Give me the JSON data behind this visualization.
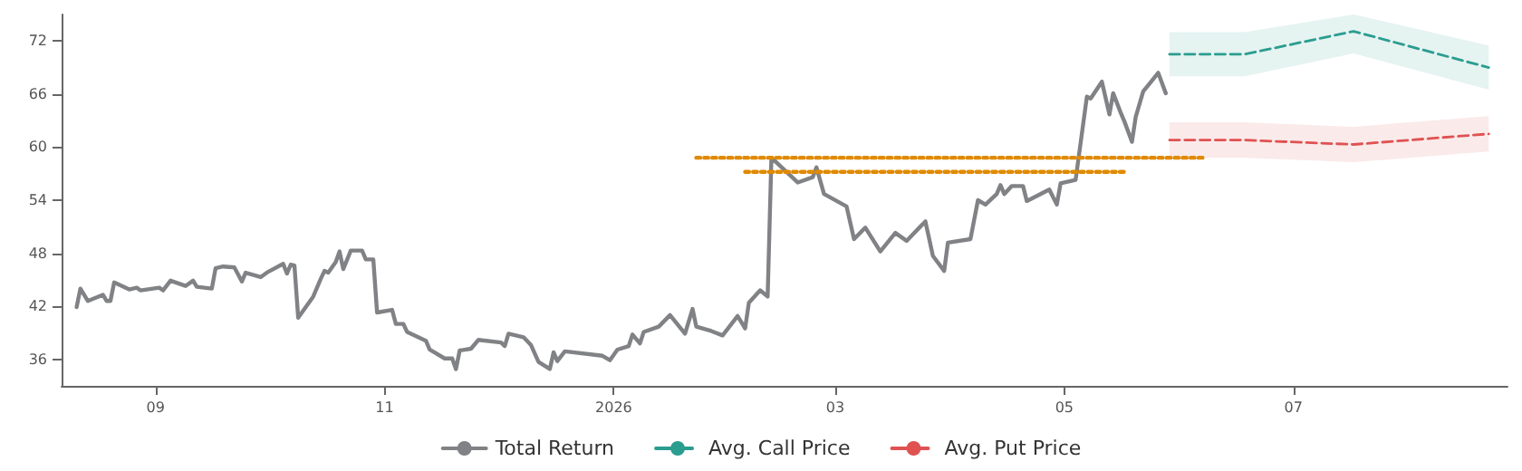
{
  "chart_data": {
    "type": "line",
    "xlim": [
      "2025-08-07",
      "2026-08-27"
    ],
    "xticks": [
      {
        "value": "2025-09-01",
        "label": "09"
      },
      {
        "value": "2025-11-01",
        "label": "11"
      },
      {
        "value": "2026-01-01",
        "label": "2026"
      },
      {
        "value": "2026-03-01",
        "label": "03"
      },
      {
        "value": "2026-05-01",
        "label": "05"
      },
      {
        "value": "2026-07-01",
        "label": "07"
      }
    ],
    "ylim": [
      33,
      75
    ],
    "yticks": [
      36,
      42,
      48,
      54,
      60,
      66,
      72
    ],
    "grid": false,
    "legend": "bottom",
    "marker": "none",
    "series": [
      {
        "name": "Total Return",
        "color": "#808285",
        "line_style": "solid",
        "x": [
          "2025-08-11",
          "2025-08-12",
          "2025-08-14",
          "2025-08-18",
          "2025-08-19",
          "2025-08-20",
          "2025-08-21",
          "2025-08-25",
          "2025-08-27",
          "2025-08-28",
          "2025-09-02",
          "2025-09-03",
          "2025-09-05",
          "2025-09-09",
          "2025-09-11",
          "2025-09-12",
          "2025-09-16",
          "2025-09-17",
          "2025-09-19",
          "2025-09-22",
          "2025-09-24",
          "2025-09-25",
          "2025-09-29",
          "2025-10-01",
          "2025-10-05",
          "2025-10-06",
          "2025-10-07",
          "2025-10-08",
          "2025-10-09",
          "2025-10-13",
          "2025-10-15",
          "2025-10-16",
          "2025-10-17",
          "2025-10-19",
          "2025-10-20",
          "2025-10-21",
          "2025-10-23",
          "2025-10-26",
          "2025-10-27",
          "2025-10-29",
          "2025-10-30",
          "2025-11-03",
          "2025-11-04",
          "2025-11-06",
          "2025-11-07",
          "2025-11-12",
          "2025-11-13",
          "2025-11-17",
          "2025-11-19",
          "2025-11-20",
          "2025-11-21",
          "2025-11-24",
          "2025-11-26",
          "2025-12-02",
          "2025-12-03",
          "2025-12-04",
          "2025-12-08",
          "2025-12-10",
          "2025-12-12",
          "2025-12-15",
          "2025-12-16",
          "2025-12-17",
          "2025-12-19",
          "2025-12-29",
          "2025-12-31",
          "2026-01-02",
          "2026-01-05",
          "2026-01-06",
          "2026-01-08",
          "2026-01-09",
          "2026-01-13",
          "2026-01-16",
          "2026-01-20",
          "2026-01-22",
          "2026-01-23",
          "2026-01-27",
          "2026-01-30",
          "2026-02-03",
          "2026-02-05",
          "2026-02-06",
          "2026-02-09",
          "2026-02-11",
          "2026-02-12",
          "2026-02-19",
          "2026-02-23",
          "2026-02-24",
          "2026-02-26",
          "2026-03-04",
          "2026-03-06",
          "2026-03-09",
          "2026-03-13",
          "2026-03-17",
          "2026-03-20",
          "2026-03-25",
          "2026-03-27",
          "2026-03-30",
          "2026-03-31",
          "2026-04-06",
          "2026-04-08",
          "2026-04-10",
          "2026-04-13",
          "2026-04-14",
          "2026-04-15",
          "2026-04-17",
          "2026-04-20",
          "2026-04-21",
          "2026-04-27",
          "2026-04-29",
          "2026-04-30",
          "2026-05-04",
          "2026-05-07",
          "2026-05-08",
          "2026-05-11",
          "2026-05-13",
          "2026-05-14",
          "2026-05-16",
          "2026-05-17",
          "2026-05-19",
          "2026-05-20",
          "2026-05-22",
          "2026-05-26",
          "2026-05-28"
        ],
        "values": [
          41.9,
          44.0,
          42.6,
          43.3,
          42.6,
          42.6,
          44.7,
          43.9,
          44.1,
          43.8,
          44.1,
          43.8,
          44.9,
          44.3,
          44.9,
          44.2,
          44.0,
          46.3,
          46.5,
          46.4,
          44.8,
          45.8,
          45.3,
          45.9,
          46.8,
          45.7,
          46.7,
          46.6,
          40.7,
          43.1,
          45.1,
          46.0,
          45.8,
          47.0,
          48.2,
          46.2,
          48.3,
          48.3,
          47.3,
          47.3,
          41.3,
          41.6,
          40.0,
          40.0,
          39.1,
          38.1,
          37.1,
          36.1,
          36.1,
          34.9,
          37.0,
          37.2,
          38.2,
          37.9,
          37.5,
          38.9,
          38.5,
          37.6,
          35.7,
          34.9,
          36.8,
          35.8,
          36.9,
          36.4,
          35.9,
          37.1,
          37.5,
          38.8,
          37.8,
          39.1,
          39.7,
          41.0,
          38.9,
          41.7,
          39.7,
          39.2,
          38.7,
          40.9,
          39.5,
          42.4,
          43.8,
          43.1,
          58.8,
          56.0,
          56.6,
          57.7,
          54.7,
          53.3,
          49.6,
          50.9,
          48.2,
          50.3,
          49.4,
          51.6,
          47.7,
          46.0,
          49.2,
          49.6,
          54.0,
          53.5,
          54.7,
          55.7,
          54.7,
          55.6,
          55.6,
          53.9,
          55.2,
          53.5,
          55.9,
          56.3,
          65.7,
          65.5,
          67.4,
          63.7,
          66.1,
          63.9,
          62.9,
          60.6,
          63.4,
          66.3,
          68.4,
          66.1
        ]
      },
      {
        "name": "Avg. Call Price",
        "color": "#2a9d8f",
        "line_style": "dashed",
        "x": [
          "2026-05-29",
          "2026-06-18",
          "2026-07-17",
          "2026-08-22"
        ],
        "values": [
          70.5,
          70.5,
          73.1,
          69.0
        ],
        "lower": [
          68.0,
          68.0,
          70.6,
          66.5
        ],
        "upper": [
          73.0,
          73.0,
          75.0,
          71.5
        ]
      },
      {
        "name": "Avg. Put Price",
        "color": "#e05252",
        "line_style": "dashed",
        "x": [
          "2026-05-29",
          "2026-06-18",
          "2026-07-17",
          "2026-08-22"
        ],
        "values": [
          60.8,
          60.8,
          60.3,
          61.5
        ],
        "lower": [
          58.8,
          58.8,
          58.3,
          59.5
        ],
        "upper": [
          62.8,
          62.8,
          62.3,
          63.5
        ]
      },
      {
        "color": "#e08a00",
        "line_style": "dotted",
        "x": [
          "2026-01-23",
          "2026-06-07"
        ],
        "values": [
          58.8,
          58.8
        ]
      },
      {
        "color": "#e08a00",
        "line_style": "dotted",
        "x": [
          "2026-02-05",
          "2026-05-17"
        ],
        "values": [
          57.2,
          57.2
        ]
      }
    ]
  }
}
